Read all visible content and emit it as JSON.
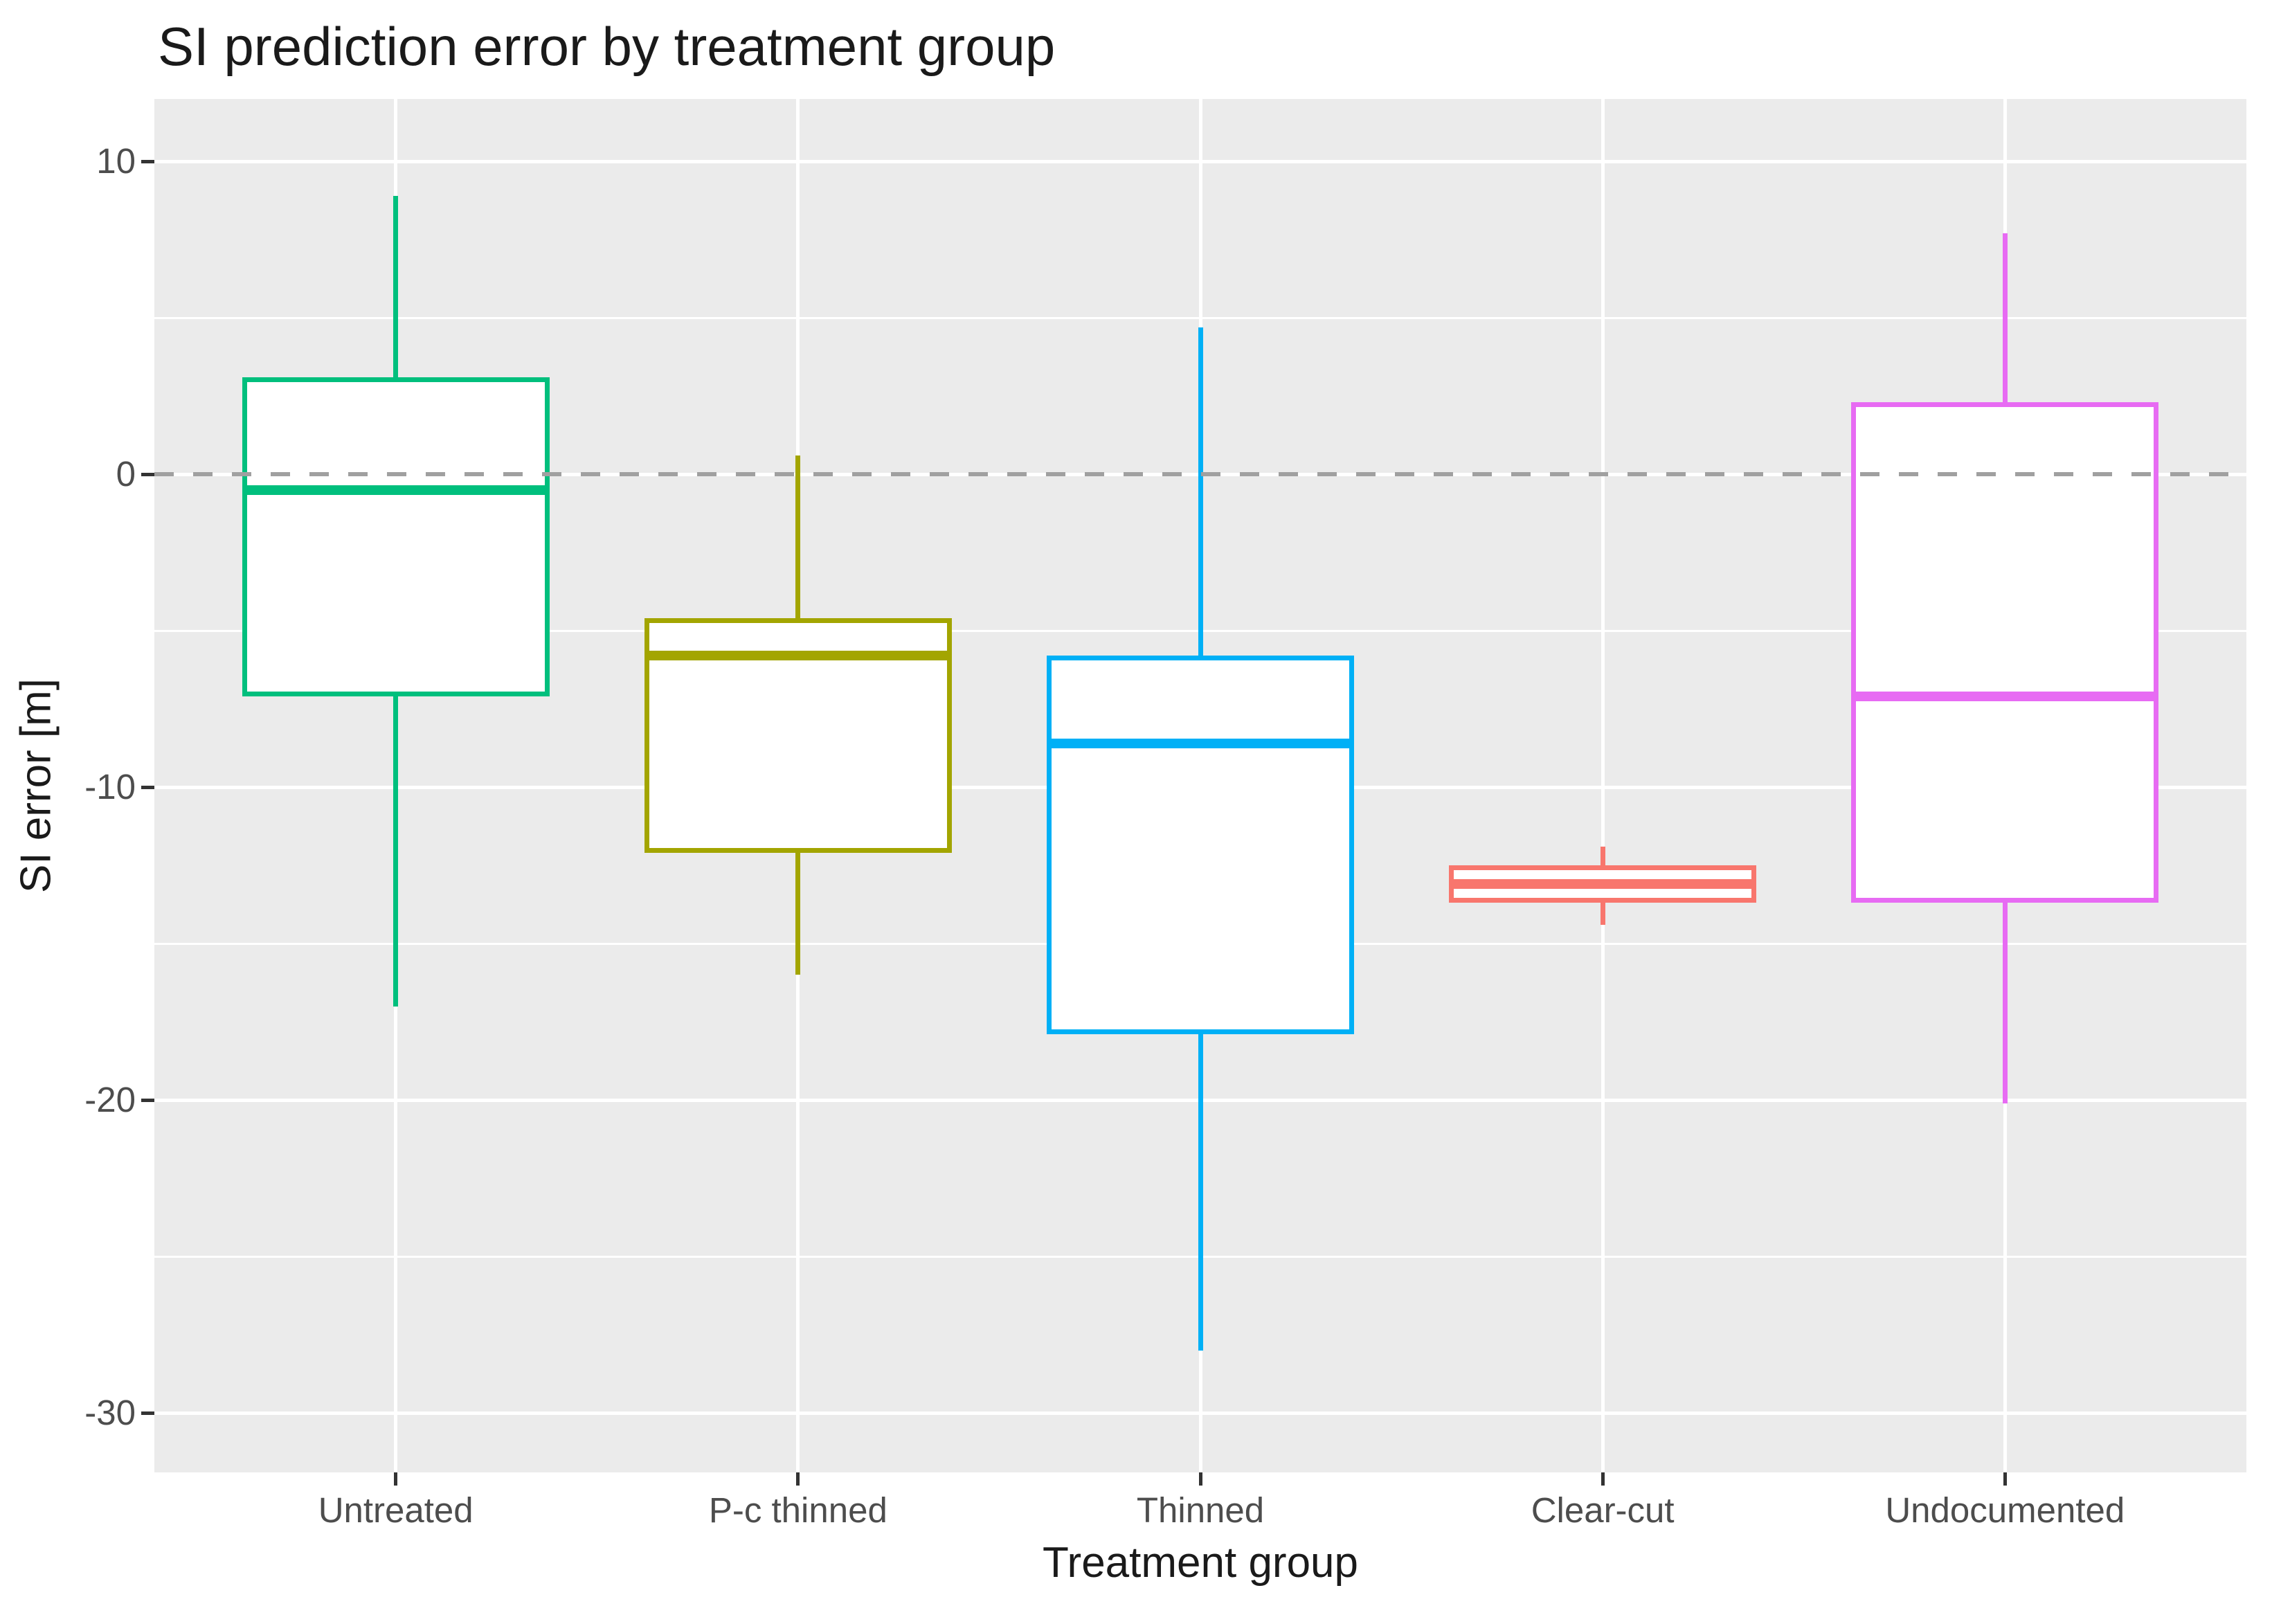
{
  "title": "SI prediction error by treatment group",
  "axes": {
    "x_title": "Treatment group",
    "y_title": "SI error [m]",
    "y_tick_labels": [
      "10",
      "0",
      "-10",
      "-20",
      "-30"
    ]
  },
  "colors": {
    "panel_background": "#EBEBEB",
    "gridline": "#FFFFFF",
    "reference_line": "#A0A0A0",
    "tick_text": "#4D4D4D",
    "tick_mark": "#333333",
    "title_text": "#1A1A1A",
    "box_fill": "#FFFFFF"
  },
  "chart_data": {
    "type": "boxplot",
    "title": "SI prediction error by treatment group",
    "xlabel": "Treatment group",
    "ylabel": "SI error [m]",
    "categories": [
      "Untreated",
      "P-c thinned",
      "Thinned",
      "Clear-cut",
      "Undocumented"
    ],
    "ylim": [
      -31.9,
      12
    ],
    "y_major_ticks": [
      10,
      0,
      -10,
      -20,
      -30
    ],
    "y_minor_ticks": [
      5,
      -5,
      -15,
      -25
    ],
    "grid": true,
    "reference_line_y": 0,
    "reference_line_style": "dashed",
    "series": [
      {
        "name": "Untreated",
        "color": "#00BF7D",
        "whisker_high": 8.9,
        "q3": 3.1,
        "median": -0.5,
        "q1": -7.1,
        "whisker_low": -17.0
      },
      {
        "name": "P-c thinned",
        "color": "#A3A500",
        "whisker_high": 0.6,
        "q3": -4.6,
        "median": -5.8,
        "q1": -12.1,
        "whisker_low": -16.0
      },
      {
        "name": "Thinned",
        "color": "#00B0F6",
        "whisker_high": 4.7,
        "q3": -5.8,
        "median": -8.6,
        "q1": -17.9,
        "whisker_low": -28.0
      },
      {
        "name": "Clear-cut",
        "color": "#F8766D",
        "whisker_high": -11.9,
        "q3": -12.5,
        "median": -13.1,
        "q1": -13.7,
        "whisker_low": -14.4
      },
      {
        "name": "Undocumented",
        "color": "#E76BF3",
        "whisker_high": 7.7,
        "q3": 2.3,
        "median": -7.1,
        "q1": -13.7,
        "whisker_low": -20.1
      }
    ]
  }
}
